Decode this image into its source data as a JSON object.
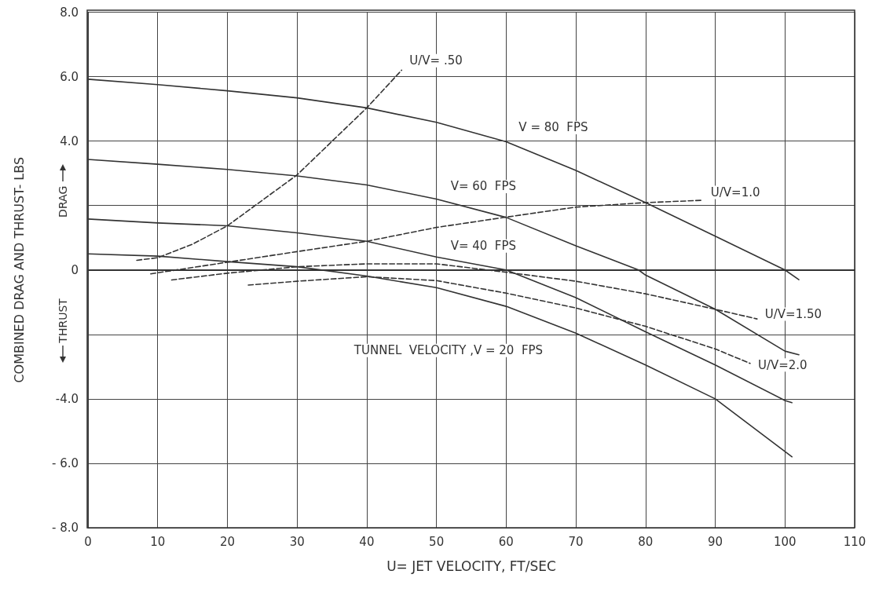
{
  "chart_data": {
    "type": "line",
    "xlabel": "U= JET VELOCITY, FT/SEC",
    "ylabel": "COMBINED DRAG AND THRUST- LBS",
    "annotations": [
      "DRAG",
      "THRUST"
    ],
    "xlim": [
      0,
      110
    ],
    "xticks": [
      0,
      10,
      20,
      30,
      40,
      50,
      60,
      70,
      80,
      90,
      100,
      110
    ],
    "ylim": [
      -8,
      8
    ],
    "yticks": [
      {
        "value": -8,
        "label": "- 8.0"
      },
      {
        "value": -6,
        "label": "- 6.0"
      },
      {
        "value": -4,
        "label": "-4.0"
      },
      {
        "value": -2,
        "label": null
      },
      0,
      {
        "value": 2,
        "label": null
      },
      {
        "value": 4,
        "label": "4.0"
      },
      {
        "value": 6,
        "label": "6.0"
      },
      {
        "value": 8,
        "label": "8.0"
      }
    ],
    "grid": true,
    "legend": false,
    "marker": "none",
    "series": [
      {
        "name": "V = 80  FPS",
        "color": "#333333",
        "line_style": "solid",
        "x": [
          0,
          10,
          20,
          30,
          40,
          50,
          60,
          70,
          80,
          90,
          100,
          102
        ],
        "values": [
          5.92,
          5.75,
          5.56,
          5.34,
          5.03,
          4.58,
          3.98,
          3.09,
          2.09,
          1.05,
          0,
          -0.3
        ]
      },
      {
        "name": "V= 60  FPS",
        "color": "#333333",
        "line_style": "solid",
        "x": [
          0,
          10,
          20,
          30,
          40,
          50,
          60,
          70,
          79,
          80,
          90,
          100,
          102
        ],
        "values": [
          3.43,
          3.28,
          3.12,
          2.92,
          2.64,
          2.2,
          1.63,
          0.75,
          0,
          -0.16,
          -1.22,
          -2.52,
          -2.63
        ]
      },
      {
        "name": "V= 40  FPS",
        "color": "#333333",
        "line_style": "solid",
        "x": [
          0,
          10,
          20,
          30,
          40,
          50,
          60,
          70,
          80,
          90,
          100,
          101
        ],
        "values": [
          1.58,
          1.46,
          1.37,
          1.15,
          0.89,
          0.4,
          0,
          -0.86,
          -1.92,
          -2.95,
          -4.05,
          -4.12
        ]
      },
      {
        "name": "TUNNEL  VELOCITY ,V = 20  FPS",
        "color": "#333333",
        "line_style": "solid",
        "x": [
          0,
          10,
          20,
          30,
          40,
          50,
          60,
          70,
          80,
          90,
          101
        ],
        "values": [
          0.5,
          0.43,
          0.26,
          0.1,
          -0.19,
          -0.55,
          -1.13,
          -1.96,
          -2.95,
          -4.0,
          -5.8
        ]
      },
      {
        "name": "U/V= .50",
        "color": "#333333",
        "line_style": "dashed",
        "x": [
          7,
          10,
          15,
          20,
          30,
          40,
          45
        ],
        "values": [
          0.3,
          0.38,
          0.8,
          1.37,
          2.95,
          5.03,
          6.2
        ]
      },
      {
        "name": "U/V=1.0",
        "color": "#333333",
        "line_style": "dashed",
        "x": [
          9,
          20,
          30,
          40,
          50,
          60,
          70,
          80,
          88
        ],
        "values": [
          -0.12,
          0.24,
          0.57,
          0.89,
          1.32,
          1.64,
          1.95,
          2.09,
          2.16
        ]
      },
      {
        "name": "U/V=1.50",
        "color": "#333333",
        "line_style": "dashed",
        "x": [
          12,
          20,
          30,
          40,
          50,
          60,
          70,
          80,
          90,
          96
        ],
        "values": [
          -0.31,
          -0.1,
          0.1,
          0.19,
          0.19,
          -0.07,
          -0.35,
          -0.74,
          -1.22,
          -1.52
        ]
      },
      {
        "name": "U/V=2.0",
        "color": "#333333",
        "line_style": "dashed",
        "x": [
          23,
          30,
          40,
          50,
          60,
          70,
          80,
          90,
          95
        ],
        "values": [
          -0.47,
          -0.35,
          -0.21,
          -0.33,
          -0.72,
          -1.18,
          -1.75,
          -2.45,
          -2.9
        ]
      }
    ]
  }
}
